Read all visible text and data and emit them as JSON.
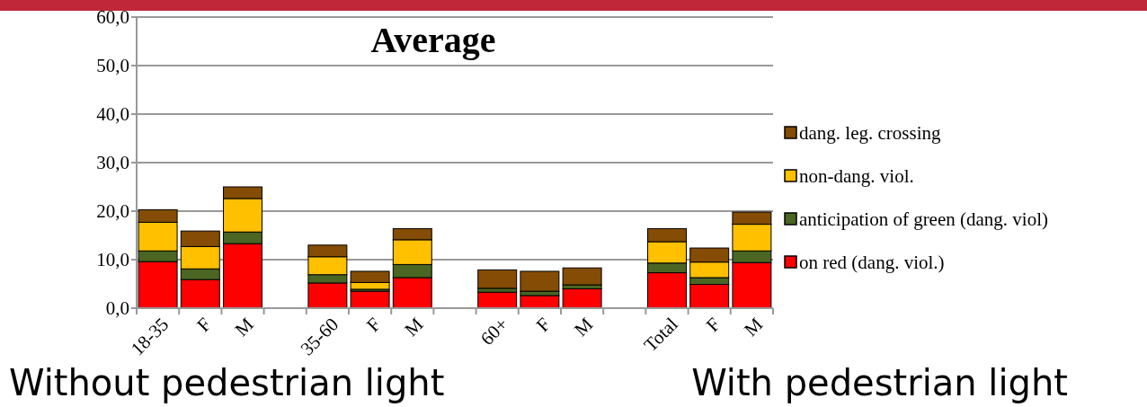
{
  "chart_data": {
    "type": "bar",
    "title": "Average",
    "stacked": true,
    "categories": [
      "18-35",
      "F",
      "M",
      null,
      "35-60",
      "F",
      "M",
      null,
      "60+",
      "F",
      "M",
      null,
      "Total",
      "F",
      "M"
    ],
    "series": [
      {
        "name": "on red (dang. viol.)",
        "color": "#ff0000",
        "values": [
          9.6,
          5.9,
          13.3,
          null,
          5.2,
          3.5,
          6.3,
          null,
          3.3,
          2.6,
          4.0,
          null,
          7.3,
          4.9,
          9.4
        ]
      },
      {
        "name": "anticipation of green (dang. viol)",
        "color": "#4a6622",
        "values": [
          2.2,
          2.2,
          2.4,
          null,
          1.7,
          0.4,
          2.7,
          null,
          0.8,
          0.9,
          0.8,
          null,
          2.0,
          1.4,
          2.4
        ]
      },
      {
        "name": "non-dang. viol.",
        "color": "#ffc000",
        "values": [
          5.9,
          4.6,
          6.9,
          null,
          3.7,
          1.4,
          5.1,
          null,
          0,
          0,
          0,
          null,
          4.4,
          3.2,
          5.5
        ]
      },
      {
        "name": "dang. leg. crossing",
        "color": "#844c04",
        "values": [
          2.6,
          3.2,
          2.4,
          null,
          2.4,
          2.3,
          2.3,
          null,
          3.8,
          4.1,
          3.5,
          null,
          2.7,
          2.9,
          2.5
        ]
      }
    ],
    "ylim": [
      0,
      60
    ],
    "yticks": [
      {
        "value": 0,
        "label": "0,0"
      },
      {
        "value": 10,
        "label": "10,0"
      },
      {
        "value": 20,
        "label": "20,0"
      },
      {
        "value": 30,
        "label": "30,0"
      },
      {
        "value": 40,
        "label": "40,0"
      },
      {
        "value": 50,
        "label": "50,0"
      },
      {
        "value": 60,
        "label": "60,0"
      }
    ],
    "grid": "y",
    "legend": "right",
    "annotations": [
      "Without pedestrian light",
      "With pedestrian light"
    ]
  }
}
